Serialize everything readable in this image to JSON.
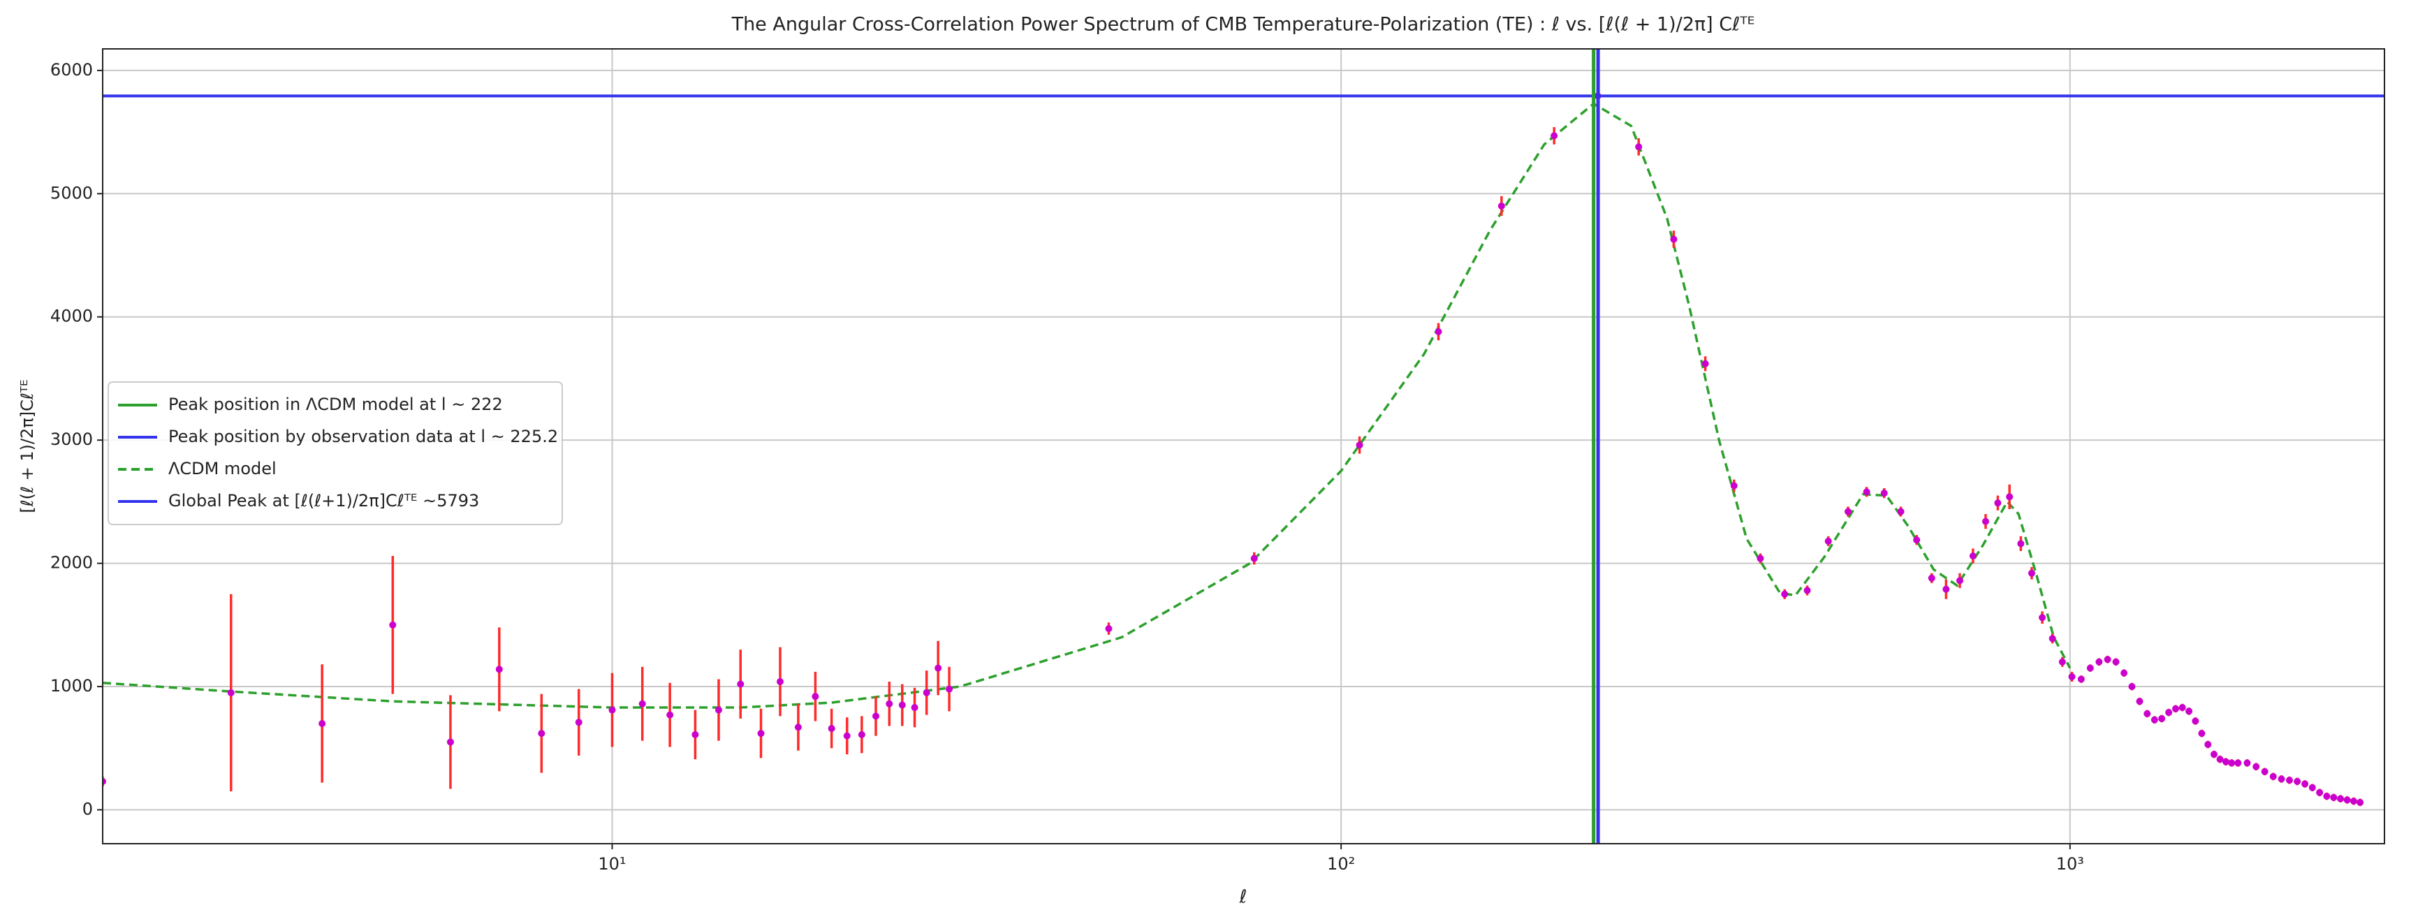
{
  "chart_data": {
    "type": "line",
    "title": "The Angular Cross-Correlation Power Spectrum of CMB Temperature-Polarization (TE) : ℓ vs. [ℓ(ℓ + 1)/2π] Cℓᵀᴱ",
    "xlabel": "ℓ",
    "ylabel": "[ℓ(ℓ + 1)/2π]Cℓᵀᴱ",
    "xscale": "log",
    "xlim": [
      2,
      2700
    ],
    "ylim": [
      -275,
      6175
    ],
    "xticks": [
      {
        "value": 10,
        "label": "10¹"
      },
      {
        "value": 100,
        "label": "10²"
      },
      {
        "value": 1000,
        "label": "10³"
      }
    ],
    "yticks": [
      0,
      1000,
      2000,
      3000,
      4000,
      5000,
      6000
    ],
    "grid": true,
    "legend": "center left",
    "series": [
      {
        "name": "ΛCDM model",
        "color": "#2ca02c",
        "style": "dashed",
        "x": [
          2,
          3,
          5,
          10,
          15,
          20,
          30,
          50,
          75,
          100,
          130,
          160,
          190,
          222,
          250,
          280,
          300,
          330,
          360,
          400,
          420,
          460,
          520,
          560,
          600,
          650,
          700,
          760,
          820,
          850,
          900,
          950,
          1000
        ],
        "values": [
          1030,
          960,
          880,
          830,
          830,
          870,
          1000,
          1400,
          2000,
          2750,
          3700,
          4700,
          5400,
          5730,
          5550,
          4800,
          4100,
          3000,
          2200,
          1760,
          1740,
          2050,
          2560,
          2550,
          2300,
          1950,
          1820,
          2150,
          2500,
          2400,
          1900,
          1400,
          1150
        ]
      },
      {
        "color": "#cc00cc",
        "error_color": "#ff2a2a",
        "style": "errorbar",
        "x": [
          2,
          3,
          4,
          5,
          6,
          7,
          8,
          9,
          10,
          11,
          12,
          13,
          14,
          15,
          16,
          17,
          18,
          19,
          20,
          21,
          22,
          23,
          24,
          25,
          26,
          27,
          28,
          29,
          48,
          76,
          106,
          136,
          166,
          196,
          225,
          256,
          286,
          316,
          346,
          376,
          406,
          436,
          466,
          496,
          526,
          556,
          586,
          616,
          646,
          676,
          706,
          736,
          766,
          796,
          826,
          856,
          886,
          916,
          946,
          976,
          1006,
          1036,
          1066,
          1096,
          1126,
          1156,
          1186,
          1216,
          1246,
          1276,
          1306,
          1336,
          1366,
          1396,
          1426,
          1456,
          1486,
          1516,
          1546,
          1576,
          1606,
          1636,
          1666,
          1700,
          1750,
          1800,
          1850,
          1900,
          1950,
          2000,
          2050,
          2100,
          2150,
          2200,
          2250,
          2300,
          2350,
          2400,
          2450,
          2500
        ],
        "values": [
          230,
          950,
          700,
          1500,
          550,
          1140,
          620,
          710,
          810,
          860,
          770,
          610,
          810,
          1020,
          620,
          1040,
          670,
          920,
          660,
          600,
          610,
          760,
          860,
          850,
          830,
          950,
          1150,
          980,
          1470,
          2040,
          2960,
          3880,
          4900,
          5470,
          5793,
          5380,
          4630,
          3620,
          2630,
          2040,
          1750,
          1780,
          2180,
          2420,
          2580,
          2570,
          2420,
          2190,
          1880,
          1790,
          1860,
          2060,
          2340,
          2490,
          2540,
          2160,
          1920,
          1560,
          1390,
          1200,
          1080,
          1060,
          1150,
          1200,
          1220,
          1200,
          1110,
          1000,
          880,
          780,
          730,
          740,
          790,
          820,
          830,
          800,
          720,
          620,
          530,
          450,
          410,
          390,
          380,
          380,
          380,
          350,
          310,
          270,
          250,
          240,
          230,
          210,
          180,
          140,
          110,
          100,
          90,
          80,
          70,
          60
        ],
        "errors": [
          40,
          800,
          480,
          560,
          380,
          340,
          320,
          270,
          300,
          300,
          260,
          200,
          250,
          280,
          200,
          280,
          190,
          200,
          160,
          150,
          150,
          160,
          180,
          170,
          160,
          180,
          220,
          180,
          50,
          50,
          70,
          70,
          80,
          70,
          60,
          70,
          70,
          60,
          50,
          40,
          40,
          40,
          40,
          40,
          40,
          40,
          40,
          40,
          40,
          80,
          60,
          60,
          60,
          60,
          100,
          60,
          50,
          50,
          40,
          40,
          40,
          30,
          30,
          30,
          30,
          30,
          30,
          30,
          30,
          30,
          30,
          30,
          30,
          30,
          30,
          30,
          30,
          30,
          30,
          30,
          30,
          30,
          30,
          30,
          30,
          30,
          30,
          30,
          30,
          30,
          30,
          30,
          30,
          30,
          30,
          30,
          30,
          30,
          30,
          30
        ]
      }
    ],
    "vlines": [
      {
        "name": "Peak position in ΛCDM model at l ~ 222",
        "value": 222,
        "color": "#2ca02c"
      },
      {
        "name": "Peak position by observation data at l ~ 225.2",
        "value": 225.2,
        "color": "#3333ee"
      }
    ],
    "hlines": [
      {
        "name": "Global Peak at [ℓ(ℓ+1)/2π]Cℓᵀᴱ ~5793",
        "value": 5793,
        "color": "#3333ee"
      }
    ]
  }
}
